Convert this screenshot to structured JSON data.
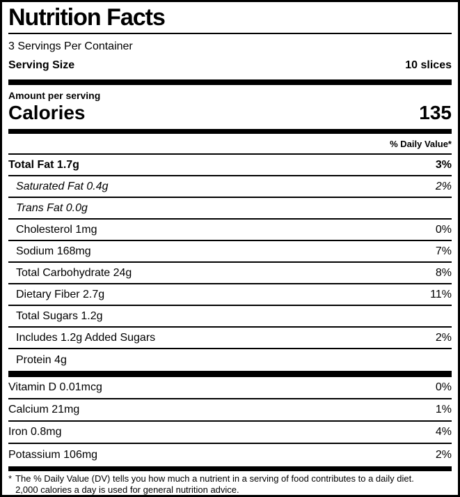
{
  "colors": {
    "text": "#000000",
    "background": "#ffffff",
    "divider": "#000000"
  },
  "header": {
    "title": "Nutrition Facts",
    "servings_per_container": "3 Servings Per Container",
    "serving_size_label": "Serving Size",
    "serving_size_value": "10 slices"
  },
  "calories": {
    "amount_per_serving_label": "Amount per serving",
    "calories_label": "Calories",
    "calories_value": "135"
  },
  "daily_value_header": "% Daily Value*",
  "nutrients": [
    {
      "text": "Total Fat 1.7g",
      "value": "3%",
      "variant": "bold"
    },
    {
      "text": "Saturated Fat 0.4g",
      "value": "2%",
      "variant": "italic"
    },
    {
      "text": "Trans Fat 0.0g",
      "value": "",
      "variant": "italic"
    },
    {
      "text": "Cholesterol 1mg",
      "value": "0%",
      "variant": "indent"
    },
    {
      "text": "Sodium 168mg",
      "value": "7%",
      "variant": "indent"
    },
    {
      "text": "Total Carbohydrate 24g",
      "value": "8%",
      "variant": "indent"
    },
    {
      "text": "Dietary Fiber 2.7g",
      "value": "11%",
      "variant": "indent"
    },
    {
      "text": "Total Sugars 1.2g",
      "value": "",
      "variant": "indent"
    },
    {
      "text": "Includes 1.2g Added Sugars",
      "value": "2%",
      "variant": "indent"
    },
    {
      "text": "Protein 4g",
      "value": "",
      "variant": "indent"
    }
  ],
  "vitamins": [
    {
      "text": "Vitamin D 0.01mcg",
      "value": "0%",
      "variant": "plain"
    },
    {
      "text": "Calcium 21mg",
      "value": "1%",
      "variant": "plain"
    },
    {
      "text": "Iron 0.8mg",
      "value": "4%",
      "variant": "plain"
    },
    {
      "text": "Potassium 106mg",
      "value": "2%",
      "variant": "plain"
    }
  ],
  "footnote": {
    "marker": "*",
    "line1": "The % Daily Value (DV) tells you how much a nutrient in a serving of food contributes to a daily diet.",
    "line2": "2,000 calories a day is used for general nutrition advice."
  }
}
